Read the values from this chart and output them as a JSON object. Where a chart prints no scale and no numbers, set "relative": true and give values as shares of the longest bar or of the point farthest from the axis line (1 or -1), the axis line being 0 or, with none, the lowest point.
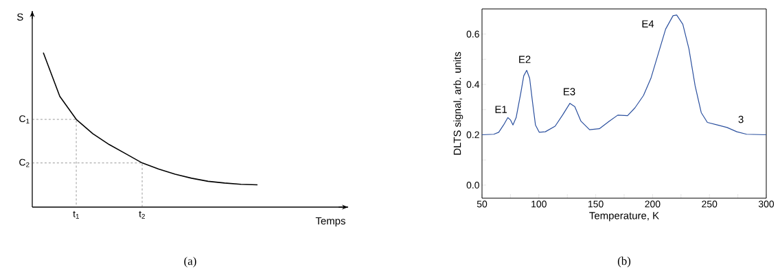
{
  "chart_data": [
    {
      "type": "line",
      "relative": true,
      "xlabel": "Temps",
      "ylabel": "S",
      "categories": [
        null,
        null,
        "t$_{1}$",
        null,
        null,
        null,
        "t$_{2}$",
        null,
        null,
        null,
        null,
        null,
        null,
        null
      ],
      "series": [
        {
          "color": "#000000",
          "values": [
            1.0,
            0.717,
            0.568,
            0.476,
            0.405,
            0.346,
            0.286,
            0.246,
            0.213,
            0.187,
            0.167,
            0.156,
            0.148,
            0.144
          ]
        }
      ],
      "ref_lines": [
        {
          "axis": "y",
          "value": 0.568,
          "label": "C$_{1}$",
          "color": "#555555",
          "line_style": "dashed"
        },
        {
          "axis": "y",
          "value": 0.286,
          "label": "C$_{2}$",
          "color": "#555555",
          "line_style": "dashed"
        }
      ],
      "annotations": [
        "(a)"
      ]
    },
    {
      "type": "line",
      "xlabel": "Temperature, K",
      "ylabel": "DLTS signal, arb. units",
      "xlim": [
        50,
        300
      ],
      "ylim": [
        -0.052,
        0.7
      ],
      "xticks": [
        50,
        {
          "value": 75,
          "label": null
        },
        100,
        {
          "value": 125,
          "label": null
        },
        150,
        {
          "value": 175,
          "label": null
        },
        200,
        {
          "value": 225,
          "label": null
        },
        250,
        {
          "value": 275,
          "label": null
        },
        300
      ],
      "yticks": [
        {
          "value": 0,
          "label": "0.0"
        },
        {
          "value": 0.1,
          "label": null
        },
        0.2,
        {
          "value": 0.3,
          "label": null
        },
        0.4,
        {
          "value": 0.5,
          "label": null
        },
        0.6
      ],
      "series": [
        {
          "color": "#2a4f9e",
          "x": [
            50,
            60.4,
            64.7,
            69,
            72.7,
            75,
            77.2,
            80,
            84.1,
            86.7,
            89.3,
            91.9,
            94.5,
            97,
            100.3,
            105.7,
            114.3,
            120.8,
            127.3,
            131.6,
            137,
            144.6,
            153.2,
            161.9,
            169.4,
            178,
            184.5,
            192,
            198.5,
            205,
            211.5,
            218,
            221.2,
            226.6,
            232,
            237.4,
            242.8,
            248.2,
            256.8,
            265.5,
            274.1,
            282.7,
            300
          ],
          "values": [
            0.2,
            0.202,
            0.21,
            0.239,
            0.268,
            0.259,
            0.239,
            0.268,
            0.366,
            0.434,
            0.456,
            0.424,
            0.327,
            0.239,
            0.21,
            0.212,
            0.234,
            0.278,
            0.325,
            0.312,
            0.254,
            0.22,
            0.224,
            0.254,
            0.278,
            0.276,
            0.307,
            0.356,
            0.424,
            0.522,
            0.62,
            0.673,
            0.676,
            0.639,
            0.541,
            0.395,
            0.288,
            0.249,
            0.239,
            0.229,
            0.212,
            0.202,
            0.2
          ]
        }
      ],
      "annotations": [
        {
          "text": "E1",
          "x": 72.7,
          "y": 0.268
        },
        {
          "text": "E2",
          "x": 89.3,
          "y": 0.456
        },
        {
          "text": "E3",
          "x": 127.3,
          "y": 0.325
        },
        {
          "text": "E4",
          "x": 221.2,
          "y": 0.676
        },
        {
          "text": "3",
          "x": 274.1,
          "y": 0.212
        },
        "(b)"
      ]
    }
  ]
}
